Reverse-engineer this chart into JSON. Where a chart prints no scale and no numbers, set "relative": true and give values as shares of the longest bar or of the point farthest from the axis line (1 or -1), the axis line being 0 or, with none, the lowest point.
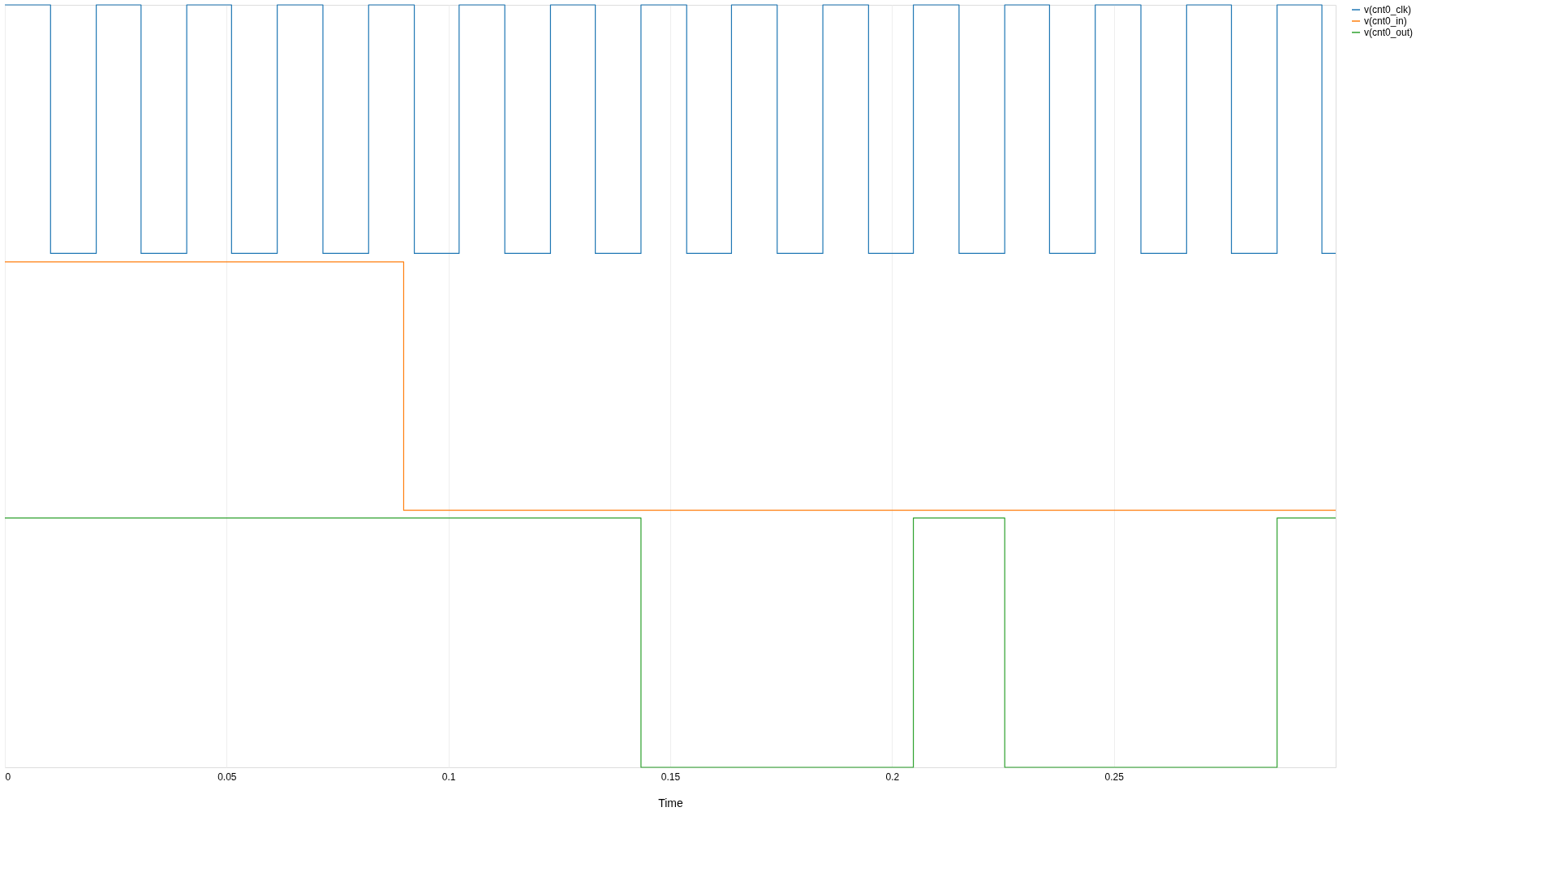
{
  "chart_data": {
    "type": "step",
    "xlabel": "Time",
    "relative": true,
    "xlim": [
      0,
      0.3
    ],
    "xticks": [
      0,
      0.05,
      0.1,
      0.15,
      0.2,
      0.25
    ],
    "grid": "x",
    "legend": "top right",
    "line_style": "solid",
    "marker": "none",
    "series": [
      {
        "name": "v(cnt0_clk)",
        "color": "#1f77b4",
        "x": [
          0,
          0.0103,
          0.0206,
          0.0307,
          0.041,
          0.0511,
          0.0614,
          0.0717,
          0.082,
          0.0923,
          0.1024,
          0.1127,
          0.123,
          0.1331,
          0.1434,
          0.1537,
          0.1638,
          0.1741,
          0.1844,
          0.1947,
          0.2048,
          0.2151,
          0.2254,
          0.2355,
          0.2458,
          0.2561,
          0.2664,
          0.2765,
          0.2868,
          0.2969,
          0.3
        ],
        "values": [
          1,
          0.674,
          1,
          0.674,
          1,
          0.674,
          1,
          0.674,
          1,
          0.674,
          1,
          0.674,
          1,
          0.674,
          1,
          0.674,
          1,
          0.674,
          1,
          0.674,
          1,
          0.674,
          1,
          0.674,
          1,
          0.674,
          1,
          0.674,
          1,
          0.674,
          0.674
        ]
      },
      {
        "name": "v(cnt0_in)",
        "color": "#ff7f0e",
        "x": [
          0,
          0.0899,
          0.3
        ],
        "values": [
          0.663,
          0.337,
          0.337
        ]
      },
      {
        "name": "v(cnt0_out)",
        "color": "#2ca02c",
        "x": [
          0,
          0.1434,
          0.2048,
          0.2254,
          0.2868,
          0.3
        ],
        "values": [
          0.327,
          0,
          0.327,
          0,
          0.327,
          0.327
        ]
      }
    ]
  }
}
